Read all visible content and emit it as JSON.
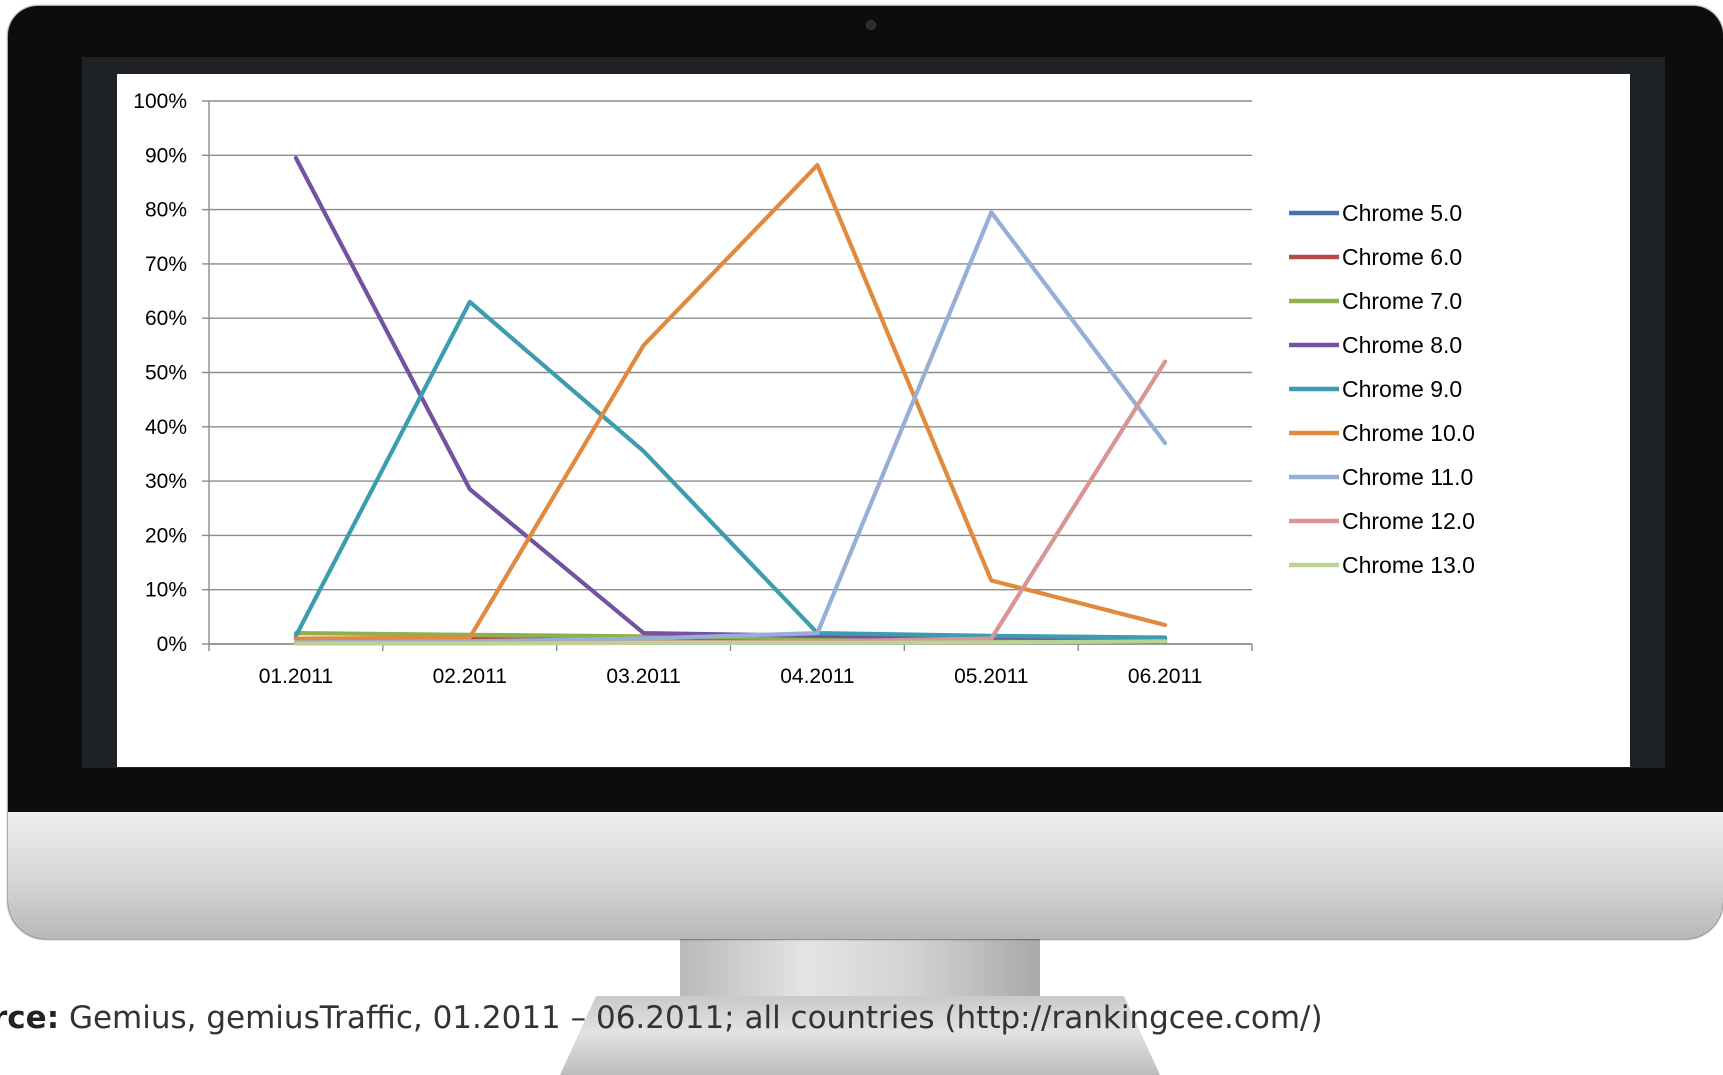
{
  "caption": {
    "label": "rce:",
    "text": "Gemius, gemiusTraffic, 01.2011 – 06.2011; all countries (http://rankingcee.com/)"
  },
  "chart_data": {
    "type": "line",
    "title": "",
    "xlabel": "",
    "ylabel": "",
    "categories": [
      "01.2011",
      "02.2011",
      "03.2011",
      "04.2011",
      "05.2011",
      "06.2011"
    ],
    "ylim": [
      0,
      100
    ],
    "yticks": [
      "0%",
      "10%",
      "20%",
      "30%",
      "40%",
      "50%",
      "60%",
      "70%",
      "80%",
      "90%",
      "100%"
    ],
    "grid": true,
    "legend_position": "right",
    "series": [
      {
        "name": "Chrome 5.0",
        "color": "#4a72b0",
        "values": [
          1.0,
          0.8,
          0.6,
          0.5,
          0.5,
          0.4
        ]
      },
      {
        "name": "Chrome 6.0",
        "color": "#b84a47",
        "values": [
          1.0,
          0.9,
          0.7,
          0.6,
          0.5,
          0.4
        ]
      },
      {
        "name": "Chrome 7.0",
        "color": "#8eb04e",
        "values": [
          2.0,
          1.7,
          1.4,
          1.2,
          1.0,
          0.8
        ]
      },
      {
        "name": "Chrome 8.0",
        "color": "#7353a1",
        "values": [
          89.5,
          28.5,
          2.0,
          1.5,
          1.2,
          1.0
        ]
      },
      {
        "name": "Chrome 9.0",
        "color": "#3d9db0",
        "values": [
          1.5,
          63.0,
          35.5,
          2.0,
          1.5,
          1.2
        ]
      },
      {
        "name": "Chrome 10.0",
        "color": "#e18a3e",
        "values": [
          1.0,
          1.2,
          55.0,
          88.2,
          11.7,
          3.5
        ]
      },
      {
        "name": "Chrome 11.0",
        "color": "#97aed6",
        "values": [
          0.3,
          0.5,
          1.0,
          2.0,
          79.5,
          37.0
        ]
      },
      {
        "name": "Chrome 12.0",
        "color": "#d99594",
        "values": [
          0.2,
          0.2,
          0.3,
          0.5,
          1.0,
          52.0
        ]
      },
      {
        "name": "Chrome 13.0",
        "color": "#b9d394",
        "values": [
          0.1,
          0.1,
          0.2,
          0.2,
          0.3,
          0.5
        ]
      }
    ]
  }
}
